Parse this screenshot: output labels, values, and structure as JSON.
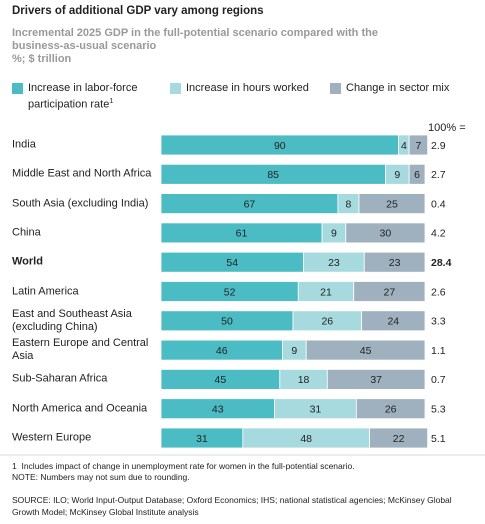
{
  "chart_data": {
    "type": "stacked_bar_100",
    "title": "Drivers of additional GDP vary among regions",
    "subtitle": "Incremental 2025 GDP in the full-potential scenario compared with the business-as-usual scenario",
    "units": "%; $ trillion",
    "categories": [
      "India",
      "Middle East and North Africa",
      "South Asia (excluding India)",
      "China",
      "World",
      "Latin America",
      "East and Southeast Asia (excluding China)",
      "Eastern Europe and Central Asia",
      "Sub-Saharan Africa",
      "North America and Oceania",
      "Western Europe"
    ],
    "bold_rows": [
      4
    ],
    "series": [
      {
        "name": "Increase in labor-force participation rate",
        "footnote_marker": "1",
        "color": "#4cbcc4",
        "values": [
          90,
          85,
          67,
          61,
          54,
          52,
          50,
          46,
          45,
          43,
          31
        ]
      },
      {
        "name": "Increase in hours worked",
        "color": "#a6dade",
        "values": [
          4,
          9,
          8,
          9,
          23,
          21,
          26,
          9,
          18,
          31,
          48
        ]
      },
      {
        "name": "Change in sector mix",
        "color": "#9fb1bf",
        "values": [
          7,
          6,
          25,
          30,
          23,
          27,
          24,
          45,
          37,
          26,
          22
        ]
      }
    ],
    "xlim": [
      0,
      100
    ],
    "totals_header": "100% =",
    "totals": [
      2.9,
      2.7,
      0.4,
      4.2,
      28.4,
      2.6,
      3.3,
      1.1,
      0.7,
      5.3,
      5.1
    ],
    "footnote": "Includes impact of change in unemployment rate for women in the full-potential scenario.",
    "footnote_marker": "1",
    "note": "NOTE: Numbers may not sum due to rounding.",
    "source": "SOURCE: ILO; World Input-Output Database; Oxford Economics; IHS; national statistical agencies; McKinsey Global Growth Model; McKinsey Global Institute analysis"
  }
}
